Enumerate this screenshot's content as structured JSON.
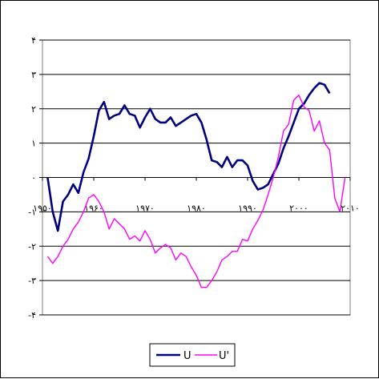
{
  "chart_data": {
    "type": "line",
    "title": "",
    "xlabel": "",
    "ylabel": "",
    "xlim": [
      1950,
      2010
    ],
    "ylim": [
      -4,
      4
    ],
    "grid": "horizontal",
    "legend_position": "bottom",
    "y_ticks": [
      {
        "value": 4,
        "label": "۴"
      },
      {
        "value": 3,
        "label": "۳"
      },
      {
        "value": 2,
        "label": "۲"
      },
      {
        "value": 1,
        "label": "۱"
      },
      {
        "value": 0,
        "label": "۰"
      },
      {
        "value": -1,
        "label": "-۱"
      },
      {
        "value": -2,
        "label": "-۲"
      },
      {
        "value": -3,
        "label": "-۳"
      },
      {
        "value": -4,
        "label": "-۴"
      }
    ],
    "x_ticks": [
      {
        "value": 1950,
        "label": "۱۹۵۰"
      },
      {
        "value": 1960,
        "label": "۱۹۶۰"
      },
      {
        "value": 1970,
        "label": "۱۹۷۰"
      },
      {
        "value": 1980,
        "label": "۱۹۸۰"
      },
      {
        "value": 1990,
        "label": "۱۹۹۰"
      },
      {
        "value": 2000,
        "label": "۲۰۰۰"
      },
      {
        "value": 2010,
        "label": "۲۰۱۰"
      }
    ],
    "series": [
      {
        "name": "U",
        "color": "#000080",
        "x": [
          1951,
          1952,
          1953,
          1954,
          1955,
          1956,
          1957,
          1958,
          1959,
          1960,
          1961,
          1962,
          1963,
          1964,
          1965,
          1966,
          1967,
          1968,
          1969,
          1970,
          1971,
          1972,
          1973,
          1974,
          1975,
          1976,
          1977,
          1978,
          1979,
          1980,
          1981,
          1982,
          1983,
          1984,
          1985,
          1986,
          1987,
          1988,
          1989,
          1990,
          1991,
          1992,
          1993,
          1994,
          1995,
          1996,
          1997,
          1998,
          1999,
          2000,
          2001,
          2002,
          2003,
          2004,
          2005,
          2006
        ],
        "values": [
          0.0,
          -1.0,
          -1.55,
          -0.7,
          -0.5,
          -0.2,
          -0.45,
          0.15,
          0.55,
          1.2,
          1.95,
          2.2,
          1.7,
          1.8,
          1.85,
          2.1,
          1.85,
          1.8,
          1.45,
          1.75,
          2.0,
          1.7,
          1.6,
          1.6,
          1.75,
          1.5,
          1.6,
          1.7,
          1.8,
          1.85,
          1.6,
          1.1,
          0.5,
          0.45,
          0.3,
          0.6,
          0.3,
          0.5,
          0.5,
          0.35,
          -0.1,
          -0.35,
          -0.3,
          -0.2,
          0.1,
          0.4,
          0.85,
          1.2,
          1.6,
          2.0,
          2.15,
          2.4,
          2.6,
          2.75,
          2.7,
          2.45
        ]
      },
      {
        "name": "U'",
        "color": "#ff00ff",
        "x": [
          1951,
          1952,
          1953,
          1954,
          1955,
          1956,
          1957,
          1958,
          1959,
          1960,
          1961,
          1962,
          1963,
          1964,
          1965,
          1966,
          1967,
          1968,
          1969,
          1970,
          1971,
          1972,
          1973,
          1974,
          1975,
          1976,
          1977,
          1978,
          1979,
          1980,
          1981,
          1982,
          1983,
          1984,
          1985,
          1986,
          1987,
          1988,
          1989,
          1990,
          1991,
          1992,
          1993,
          1994,
          1995,
          1996,
          1997,
          1998,
          1999,
          2000,
          2001,
          2002,
          2003,
          2004,
          2005,
          2006,
          2007,
          2008
        ],
        "values": [
          -2.3,
          -2.5,
          -2.3,
          -2.0,
          -1.8,
          -1.5,
          -1.3,
          -1.0,
          -0.6,
          -0.5,
          -0.7,
          -1.0,
          -1.5,
          -1.2,
          -1.35,
          -1.5,
          -1.8,
          -1.7,
          -1.85,
          -1.55,
          -1.8,
          -2.2,
          -2.05,
          -1.95,
          -2.05,
          -2.4,
          -2.2,
          -2.3,
          -2.6,
          -2.85,
          -3.2,
          -3.2,
          -3.0,
          -2.75,
          -2.4,
          -2.3,
          -2.15,
          -2.15,
          -1.8,
          -1.85,
          -1.5,
          -1.25,
          -0.95,
          -0.5,
          0.0,
          0.6,
          1.35,
          1.55,
          2.25,
          2.4,
          2.05,
          1.95,
          1.35,
          1.65,
          1.0,
          0.8,
          -0.6,
          -1.0
        ]
      }
    ],
    "extra_segment": {
      "series": "U'",
      "x": [
        2008,
        2009
      ],
      "values": [
        -1.0,
        0.0
      ]
    }
  }
}
